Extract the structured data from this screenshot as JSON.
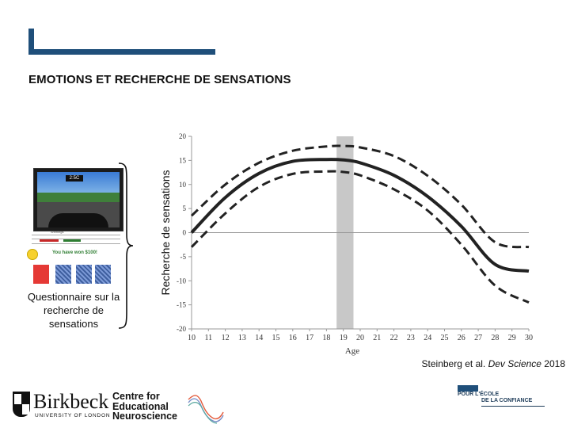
{
  "slide": {
    "heading": "EMOTIONS ET RECHERCHE DE SENSATIONS",
    "accent_color": "#1f4f7a"
  },
  "task_illustration": {
    "timer": "2:5C",
    "table_header": "Winnings",
    "won_message": "You have won $100!",
    "caption": "Questionnaire sur la recherche de sensations"
  },
  "chart_data": {
    "type": "line",
    "xlabel": "Age",
    "ylabel": "Recherche de sensations",
    "x_ticks": [
      10,
      11,
      12,
      13,
      14,
      15,
      16,
      17,
      18,
      19,
      20,
      21,
      22,
      23,
      24,
      25,
      26,
      27,
      28,
      29,
      30
    ],
    "y_ticks": [
      20,
      15,
      10,
      5,
      0,
      -5,
      -10,
      -15,
      -20
    ],
    "xlim": [
      10,
      30
    ],
    "ylim": [
      -20,
      20
    ],
    "highlight_band_x": [
      18.6,
      19.6
    ],
    "highlight_color": "#c8c8c8",
    "series": [
      {
        "role": "estimate",
        "style": "solid",
        "x": [
          10,
          12,
          14,
          16,
          18,
          19,
          20,
          22,
          24,
          26,
          28,
          30
        ],
        "values": [
          0.0,
          7.3,
          12.3,
          14.8,
          15.2,
          15.1,
          14.5,
          11.9,
          7.5,
          1.3,
          -6.6,
          -8.0
        ]
      },
      {
        "role": "upper_ci",
        "style": "dashed",
        "x": [
          10,
          12,
          14,
          16,
          18,
          19,
          20,
          22,
          24,
          26,
          28,
          30
        ],
        "values": [
          3.5,
          10.0,
          14.5,
          17.0,
          17.9,
          18.0,
          17.7,
          15.9,
          11.8,
          5.8,
          -2.0,
          -3.0
        ]
      },
      {
        "role": "lower_ci",
        "style": "dashed",
        "x": [
          10,
          12,
          14,
          16,
          18,
          19,
          20,
          22,
          24,
          26,
          28,
          30
        ],
        "values": [
          -3.0,
          4.0,
          9.5,
          12.2,
          12.7,
          12.6,
          11.9,
          9.0,
          4.6,
          -2.5,
          -11.0,
          -14.5
        ]
      }
    ]
  },
  "reference": {
    "prefix": "Steinberg et al. ",
    "journal": "Dev Science",
    "year": " 2018"
  },
  "logos": {
    "birkbeck_name": "Birkbeck",
    "birkbeck_sub": "UNIVERSITY OF LONDON",
    "cen_line1": "Centre for",
    "cen_line2": "Educational",
    "cen_line3": "Neuroscience",
    "ecole_line1": "POUR L'ÉCOLE",
    "ecole_line2": "DE LA CONFIANCE"
  }
}
